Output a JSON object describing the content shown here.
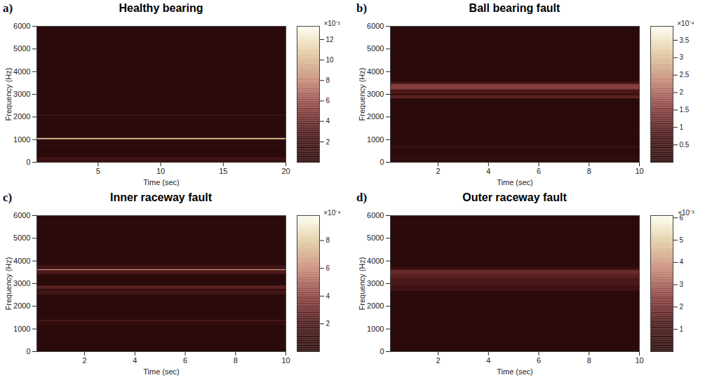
{
  "chart_data": [
    {
      "type": "heatmap",
      "panel": "a)",
      "title": "Healthy bearing",
      "x_label": "Time (sec)",
      "y_label": "Frequency (Hz)",
      "xlim": [
        0.1,
        20
      ],
      "xticks": [
        5,
        10,
        15,
        20
      ],
      "ylim": [
        0,
        6000
      ],
      "yticks": [
        0,
        1000,
        2000,
        3000,
        4000,
        5000,
        6000
      ],
      "colorbar": {
        "range": [
          0,
          0.000133
        ],
        "label": "×10⁻⁵",
        "ticks": [
          {
            "value": 2e-05,
            "label": "2"
          },
          {
            "value": 4e-05,
            "label": "4"
          },
          {
            "value": 6e-05,
            "label": "6"
          },
          {
            "value": 8e-05,
            "label": "8"
          },
          {
            "value": 0.0001,
            "label": "10"
          },
          {
            "value": 0.00012,
            "label": "12"
          }
        ]
      },
      "cells": [
        {
          "y0": 0,
          "y1": 80,
          "value": 1.5e-05
        },
        {
          "y0": 100,
          "y1": 200,
          "value": 2e-05
        },
        {
          "y0": 700,
          "y1": 760,
          "value": 1e-05
        },
        {
          "y0": 1000,
          "y1": 1060,
          "value": 0.0001
        },
        {
          "y0": 2050,
          "y1": 2075,
          "value": 3e-05
        }
      ]
    },
    {
      "type": "heatmap",
      "panel": "b)",
      "title": "Ball bearing fault",
      "x_label": "Time (sec)",
      "y_label": "Frequency (Hz)",
      "xlim": [
        0.1,
        10
      ],
      "xticks": [
        2,
        4,
        6,
        8,
        10
      ],
      "ylim": [
        0,
        6000
      ],
      "yticks": [
        0,
        1000,
        2000,
        3000,
        4000,
        5000,
        6000
      ],
      "colorbar": {
        "range": [
          0,
          0.00039
        ],
        "label": "×10⁻⁴",
        "ticks": [
          {
            "value": 5e-05,
            "label": "0.5"
          },
          {
            "value": 0.0001,
            "label": "1"
          },
          {
            "value": 0.00015,
            "label": "1.5"
          },
          {
            "value": 0.0002,
            "label": "2"
          },
          {
            "value": 0.00025,
            "label": "2.5"
          },
          {
            "value": 0.0003,
            "label": "3"
          },
          {
            "value": 0.00035,
            "label": "3.5"
          }
        ]
      },
      "cells": [
        {
          "y0": 100,
          "y1": 200,
          "value": 3e-05
        },
        {
          "y0": 600,
          "y1": 700,
          "value": 4e-05
        },
        {
          "y0": 1430,
          "y1": 1455,
          "value": 5e-05
        },
        {
          "y0": 2800,
          "y1": 2950,
          "value": 0.0001
        },
        {
          "y0": 3000,
          "y1": 3200,
          "value": 8e-05
        },
        {
          "y0": 3200,
          "y1": 3450,
          "value": 0.00015
        },
        {
          "y0": 3450,
          "y1": 3550,
          "value": 6e-05
        }
      ]
    },
    {
      "type": "heatmap",
      "panel": "c)",
      "title": "Inner raceway fault",
      "x_label": "Time (sec)",
      "y_label": "Frequency (Hz)",
      "xlim": [
        0.1,
        10
      ],
      "xticks": [
        2,
        4,
        6,
        8,
        10
      ],
      "ylim": [
        0,
        6000
      ],
      "yticks": [
        0,
        1000,
        2000,
        3000,
        4000,
        5000,
        6000
      ],
      "colorbar": {
        "range": [
          0,
          0.00098
        ],
        "label": "×10⁻⁴",
        "ticks": [
          {
            "value": 0.0002,
            "label": "2"
          },
          {
            "value": 0.0004,
            "label": "4"
          },
          {
            "value": 0.0006,
            "label": "6"
          },
          {
            "value": 0.0008,
            "label": "8"
          }
        ]
      },
      "cells": [
        {
          "y0": 600,
          "y1": 640,
          "value": 8e-05
        },
        {
          "y0": 1180,
          "y1": 1240,
          "value": 0.0001
        },
        {
          "y0": 1300,
          "y1": 1400,
          "value": 0.00015
        },
        {
          "y0": 1950,
          "y1": 2000,
          "value": 6e-05
        },
        {
          "y0": 2500,
          "y1": 2700,
          "value": 0.00015
        },
        {
          "y0": 2750,
          "y1": 2900,
          "value": 0.00025
        },
        {
          "y0": 3400,
          "y1": 3580,
          "value": 0.0002
        },
        {
          "y0": 3580,
          "y1": 3620,
          "value": 0.0006
        },
        {
          "y0": 3620,
          "y1": 3800,
          "value": 0.00015
        }
      ]
    },
    {
      "type": "heatmap",
      "panel": "d)",
      "title": "Outer raceway fault",
      "x_label": "Time (sec)",
      "y_label": "Frequency (Hz)",
      "xlim": [
        0.1,
        10
      ],
      "xticks": [
        2,
        4,
        6,
        8,
        10
      ],
      "ylim": [
        0,
        6000
      ],
      "yticks": [
        0,
        1000,
        2000,
        3000,
        4000,
        5000,
        6000
      ],
      "colorbar": {
        "range": [
          0,
          0.0061
        ],
        "label": "×10⁻³",
        "ticks": [
          {
            "value": 0.001,
            "label": "1"
          },
          {
            "value": 0.002,
            "label": "2"
          },
          {
            "value": 0.003,
            "label": "3"
          },
          {
            "value": 0.004,
            "label": "4"
          },
          {
            "value": 0.005,
            "label": "5"
          },
          {
            "value": 0.006,
            "label": "6"
          }
        ]
      },
      "cells": [
        {
          "y0": 2650,
          "y1": 2900,
          "value": 0.0008
        },
        {
          "y0": 2900,
          "y1": 3200,
          "value": 0.0012
        },
        {
          "y0": 3200,
          "y1": 3400,
          "value": 0.0015
        },
        {
          "y0": 3400,
          "y1": 3600,
          "value": 0.0018
        },
        {
          "y0": 3600,
          "y1": 3700,
          "value": 0.0007
        }
      ]
    }
  ]
}
